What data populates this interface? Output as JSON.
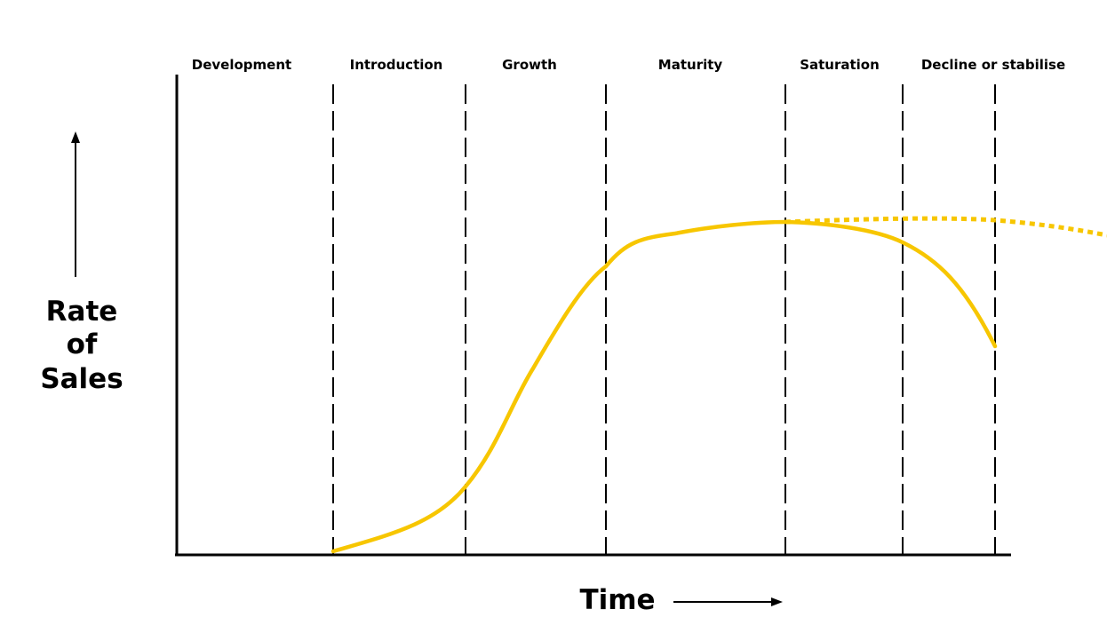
{
  "title": "",
  "stages": [
    "Development",
    "Introduction",
    "Growth",
    "Maturity",
    "Saturation",
    "Decline or stabilise"
  ],
  "y_label_lines": [
    "Rate",
    "of",
    "Sales"
  ],
  "x_label": "Time",
  "colors": {
    "curve": "#f7c600",
    "axis": "#000000",
    "title": "#2222cc"
  }
}
